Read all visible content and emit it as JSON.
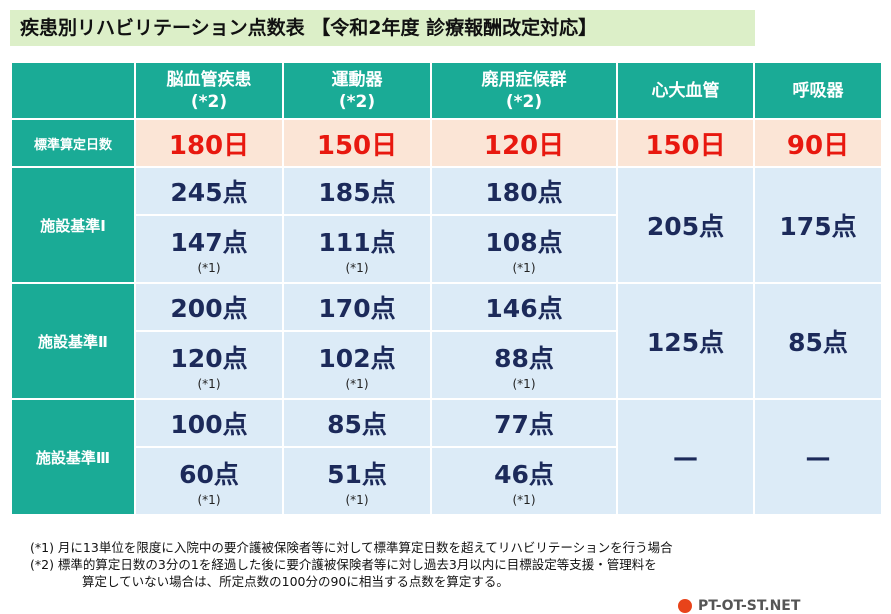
{
  "title": "疾患別リハビリテーション点数表 【令和2年度 診療報酬改定対応】",
  "columns": [
    {
      "name": "脳血管疾患",
      "note": "(*2)"
    },
    {
      "name": "運動器",
      "note": "(*2)"
    },
    {
      "name": "廃用症候群",
      "note": "(*2)"
    },
    {
      "name": "心大血管",
      "note": ""
    },
    {
      "name": "呼吸器",
      "note": ""
    }
  ],
  "standard_days": {
    "label": "標準算定日数",
    "values": [
      "180日",
      "150日",
      "120日",
      "150日",
      "90日"
    ]
  },
  "facility_levels": [
    {
      "label": "施設基準Ⅰ",
      "upper": [
        "245点",
        "185点",
        "180点"
      ],
      "lower": [
        "147点",
        "111点",
        "108点"
      ],
      "lower_note": "(*1)",
      "merged": [
        "205点",
        "175点"
      ]
    },
    {
      "label": "施設基準Ⅱ",
      "upper": [
        "200点",
        "170点",
        "146点"
      ],
      "lower": [
        "120点",
        "102点",
        "88点"
      ],
      "lower_note": "(*1)",
      "merged": [
        "125点",
        "85点"
      ]
    },
    {
      "label": "施設基準Ⅲ",
      "upper": [
        "100点",
        "85点",
        "77点"
      ],
      "lower": [
        "60点",
        "51点",
        "46点"
      ],
      "lower_note": "(*1)",
      "merged": [
        "—",
        "—"
      ]
    }
  ],
  "footnotes": [
    "(*1) 月に13単位を限度に入院中の要介護被保険者等に対して標準算定日数を超えてリハビリテーションを行う場合",
    "(*2) 標準的算定日数の3分の1を経過した後に要介護被保険者等に対し過去3月以内に目標設定等支援・管理料を",
    "算定していない場合は、所定点数の100分の90に相当する点数を算定する。"
  ],
  "logo_text": "PT-OT-ST.NET"
}
